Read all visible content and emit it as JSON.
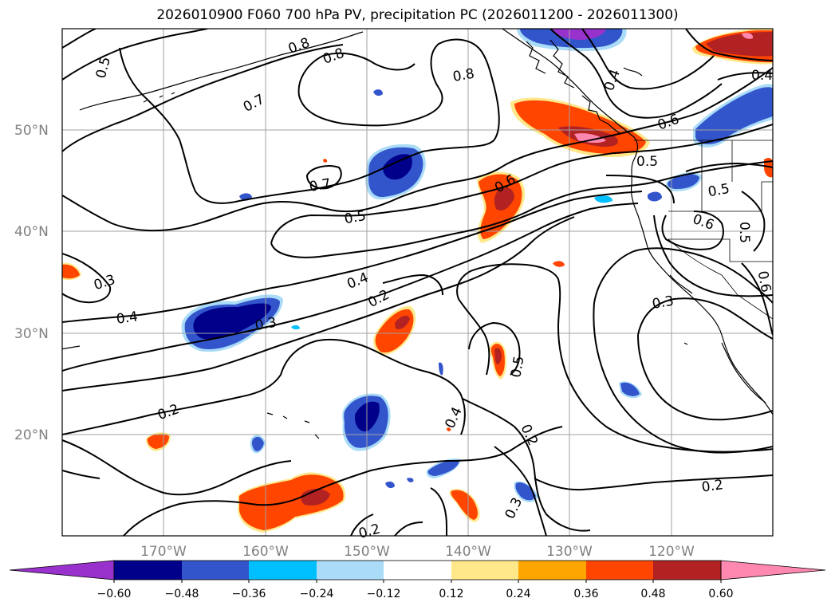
{
  "title": "2026010900 F060 700 hPa PV, precipitation PC (2026011200 - 2026011300)",
  "map": {
    "lat_labels": [
      "50°N",
      "40°N",
      "30°N",
      "20°N"
    ],
    "lon_labels": [
      "170°W",
      "160°W",
      "150°W",
      "140°W",
      "130°W",
      "120°W"
    ],
    "extent": {
      "lon_min": -180,
      "lon_max": -110,
      "lat_min": 10,
      "lat_max": 60
    }
  },
  "colorbar": {
    "tick_labels": [
      "−0.60",
      "−0.48",
      "−0.36",
      "−0.24",
      "−0.12",
      "0.12",
      "0.24",
      "0.36",
      "0.48",
      "0.60"
    ],
    "colors": [
      "#9932cc",
      "#00008b",
      "#3355cc",
      "#00bfff",
      "#aadcf8",
      "#ffffff",
      "#ffe88a",
      "#ffa500",
      "#ff4500",
      "#b22222",
      "#ff88b0"
    ]
  },
  "contour_labels": [
    "0.5",
    "0.8",
    "0.8",
    "0.7",
    "0.7",
    "0.5",
    "0.4",
    "0.3",
    "0.4",
    "0.3",
    "0.2",
    "0.2",
    "0.2",
    "0.6",
    "0.8",
    "0.4",
    "0.4",
    "0.6",
    "0.5",
    "0.5",
    "0.6",
    "0.5",
    "0.6",
    "0.3",
    "0.5",
    "0.4",
    "0.3",
    "0.2",
    "0.2"
  ]
}
